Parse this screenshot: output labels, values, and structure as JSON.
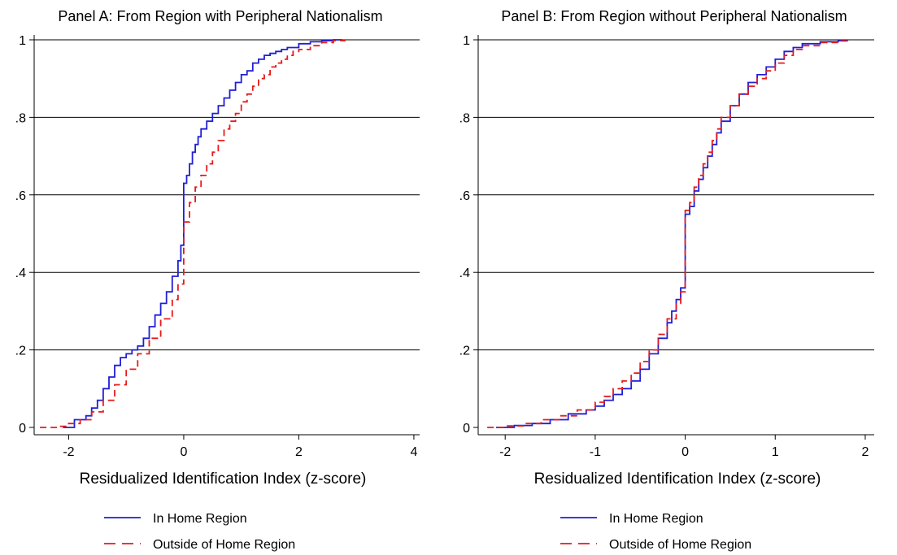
{
  "chart_data": [
    {
      "type": "line",
      "title": "Panel A: From Region with Peripheral Nationalism",
      "xlabel": "Residualized Identification Index (z-score)",
      "ylabel": "",
      "xlim": [
        -2.6,
        4.1
      ],
      "ylim": [
        0,
        1
      ],
      "xticks": [
        -2,
        0,
        2,
        4
      ],
      "xtick_labels": [
        "-2",
        "0",
        "2",
        "4"
      ],
      "yticks": [
        0,
        0.2,
        0.4,
        0.6,
        0.8,
        1
      ],
      "ytick_labels": [
        "0",
        ".2",
        ".4",
        ".6",
        ".8",
        "1"
      ],
      "grid": "horizontal",
      "legend_position": "bottom",
      "series": [
        {
          "name": "In Home Region",
          "color": "#1f1fd6",
          "dash": "solid",
          "x": [
            -2.1,
            -1.9,
            -1.7,
            -1.6,
            -1.5,
            -1.4,
            -1.3,
            -1.2,
            -1.1,
            -1.0,
            -0.9,
            -0.8,
            -0.7,
            -0.6,
            -0.5,
            -0.4,
            -0.3,
            -0.2,
            -0.1,
            -0.05,
            0.0,
            0.0,
            0.05,
            0.1,
            0.15,
            0.2,
            0.25,
            0.3,
            0.4,
            0.5,
            0.6,
            0.7,
            0.8,
            0.9,
            1.0,
            1.1,
            1.2,
            1.3,
            1.4,
            1.5,
            1.6,
            1.7,
            1.8,
            2.0,
            2.2,
            2.4,
            2.6,
            2.75
          ],
          "y": [
            0.0,
            0.02,
            0.03,
            0.05,
            0.07,
            0.1,
            0.13,
            0.16,
            0.18,
            0.19,
            0.2,
            0.21,
            0.23,
            0.26,
            0.29,
            0.32,
            0.35,
            0.39,
            0.43,
            0.47,
            0.49,
            0.63,
            0.65,
            0.68,
            0.71,
            0.73,
            0.75,
            0.77,
            0.79,
            0.81,
            0.83,
            0.85,
            0.87,
            0.89,
            0.91,
            0.92,
            0.94,
            0.95,
            0.96,
            0.965,
            0.97,
            0.975,
            0.98,
            0.99,
            0.995,
            0.998,
            1.0,
            1.0
          ]
        },
        {
          "name": "Outside of Home Region",
          "color": "#e81a1a",
          "dash": "dashed",
          "x": [
            -2.5,
            -2.2,
            -2.0,
            -1.8,
            -1.6,
            -1.4,
            -1.2,
            -1.0,
            -0.8,
            -0.6,
            -0.4,
            -0.2,
            -0.1,
            0.0,
            0.0,
            0.1,
            0.2,
            0.3,
            0.4,
            0.5,
            0.6,
            0.7,
            0.8,
            0.9,
            1.0,
            1.1,
            1.2,
            1.3,
            1.4,
            1.5,
            1.6,
            1.7,
            1.8,
            1.9,
            2.0,
            2.2,
            2.4,
            2.6,
            2.8
          ],
          "y": [
            0.0,
            0.003,
            0.01,
            0.02,
            0.04,
            0.07,
            0.11,
            0.15,
            0.19,
            0.23,
            0.28,
            0.33,
            0.37,
            0.41,
            0.53,
            0.58,
            0.62,
            0.65,
            0.68,
            0.71,
            0.74,
            0.77,
            0.79,
            0.81,
            0.84,
            0.86,
            0.88,
            0.9,
            0.91,
            0.93,
            0.94,
            0.95,
            0.96,
            0.97,
            0.975,
            0.985,
            0.993,
            0.998,
            1.0
          ]
        }
      ]
    },
    {
      "type": "line",
      "title": "Panel B: From Region without Peripheral Nationalism",
      "xlabel": "Residualized Identification Index (z-score)",
      "ylabel": "",
      "xlim": [
        -2.3,
        2.1
      ],
      "ylim": [
        0,
        1
      ],
      "xticks": [
        -2,
        -1,
        0,
        1,
        2
      ],
      "xtick_labels": [
        "-2",
        "-1",
        "0",
        "1",
        "2"
      ],
      "yticks": [
        0,
        0.2,
        0.4,
        0.6,
        0.8,
        1
      ],
      "ytick_labels": [
        "0",
        ".2",
        ".4",
        ".6",
        ".8",
        "1"
      ],
      "grid": "horizontal",
      "legend_position": "bottom",
      "series": [
        {
          "name": "In Home Region",
          "color": "#1f1fd6",
          "dash": "solid",
          "x": [
            -2.1,
            -1.9,
            -1.7,
            -1.5,
            -1.3,
            -1.1,
            -1.0,
            -0.9,
            -0.8,
            -0.7,
            -0.6,
            -0.5,
            -0.4,
            -0.3,
            -0.2,
            -0.15,
            -0.1,
            -0.05,
            0.0,
            0.0,
            0.05,
            0.1,
            0.15,
            0.2,
            0.25,
            0.3,
            0.35,
            0.4,
            0.5,
            0.6,
            0.7,
            0.8,
            0.9,
            1.0,
            1.1,
            1.2,
            1.3,
            1.5,
            1.7,
            1.8
          ],
          "y": [
            0.0,
            0.005,
            0.01,
            0.02,
            0.035,
            0.045,
            0.055,
            0.07,
            0.085,
            0.1,
            0.12,
            0.15,
            0.19,
            0.23,
            0.27,
            0.3,
            0.33,
            0.36,
            0.4,
            0.55,
            0.57,
            0.61,
            0.64,
            0.67,
            0.7,
            0.73,
            0.76,
            0.79,
            0.83,
            0.86,
            0.89,
            0.91,
            0.93,
            0.95,
            0.97,
            0.98,
            0.99,
            0.995,
            0.998,
            1.0
          ]
        },
        {
          "name": "Outside of Home Region",
          "color": "#e81a1a",
          "dash": "dashed",
          "x": [
            -2.2,
            -2.0,
            -1.8,
            -1.6,
            -1.4,
            -1.2,
            -1.0,
            -0.9,
            -0.8,
            -0.7,
            -0.6,
            -0.5,
            -0.4,
            -0.3,
            -0.2,
            -0.1,
            -0.05,
            0.0,
            0.0,
            0.05,
            0.1,
            0.15,
            0.2,
            0.25,
            0.3,
            0.35,
            0.4,
            0.5,
            0.6,
            0.7,
            0.8,
            0.9,
            1.0,
            1.1,
            1.2,
            1.3,
            1.5,
            1.7,
            1.8
          ],
          "y": [
            0.0,
            0.004,
            0.01,
            0.02,
            0.03,
            0.045,
            0.065,
            0.08,
            0.1,
            0.12,
            0.14,
            0.17,
            0.2,
            0.24,
            0.28,
            0.32,
            0.35,
            0.39,
            0.56,
            0.58,
            0.62,
            0.65,
            0.68,
            0.71,
            0.74,
            0.77,
            0.8,
            0.83,
            0.86,
            0.88,
            0.9,
            0.92,
            0.94,
            0.96,
            0.975,
            0.985,
            0.993,
            0.997,
            1.0
          ]
        }
      ]
    }
  ]
}
